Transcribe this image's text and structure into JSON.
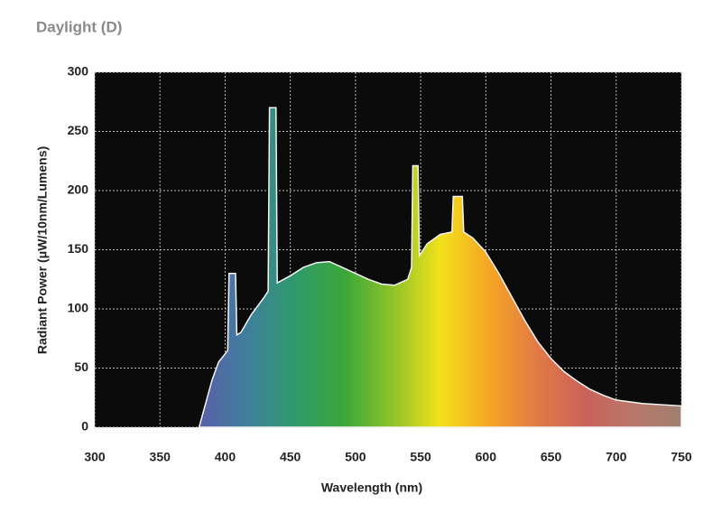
{
  "chart_data": {
    "type": "area",
    "title": "Daylight (D)",
    "x_label": "Wavelength (nm)",
    "y_label": "Radiant Power (μW/10nm/Lumens)",
    "x": [
      380,
      385,
      390,
      395,
      400,
      402,
      403,
      408,
      409,
      412,
      420,
      430,
      433,
      434,
      439,
      440,
      450,
      460,
      470,
      480,
      490,
      500,
      510,
      520,
      530,
      540,
      543,
      544,
      548,
      549,
      555,
      565,
      574,
      575,
      582,
      583,
      590,
      600,
      610,
      620,
      630,
      640,
      650,
      660,
      670,
      680,
      690,
      700,
      720,
      750
    ],
    "values": [
      0,
      20,
      40,
      55,
      62,
      65,
      130,
      130,
      78,
      80,
      95,
      110,
      115,
      270,
      270,
      122,
      128,
      135,
      139,
      140,
      135,
      130,
      125,
      121,
      120,
      125,
      135,
      221,
      221,
      145,
      155,
      163,
      165,
      195,
      195,
      165,
      160,
      148,
      130,
      110,
      90,
      72,
      58,
      47,
      39,
      32,
      27,
      23,
      20,
      18
    ],
    "xlim": [
      300,
      750
    ],
    "ylim": [
      0,
      300
    ],
    "xticks": [
      300,
      350,
      400,
      450,
      500,
      550,
      600,
      650,
      700,
      750
    ],
    "yticks": [
      0,
      50,
      100,
      150,
      200,
      250,
      300
    ],
    "grid": true,
    "colors": [
      "#5a5fa8",
      "#3f7f9e",
      "#2f9a6a",
      "#3aa63a",
      "#8cc22a",
      "#f2e21a",
      "#f5a623",
      "#e27a45",
      "#c9625a",
      "#b8786a",
      "#a08070"
    ]
  }
}
